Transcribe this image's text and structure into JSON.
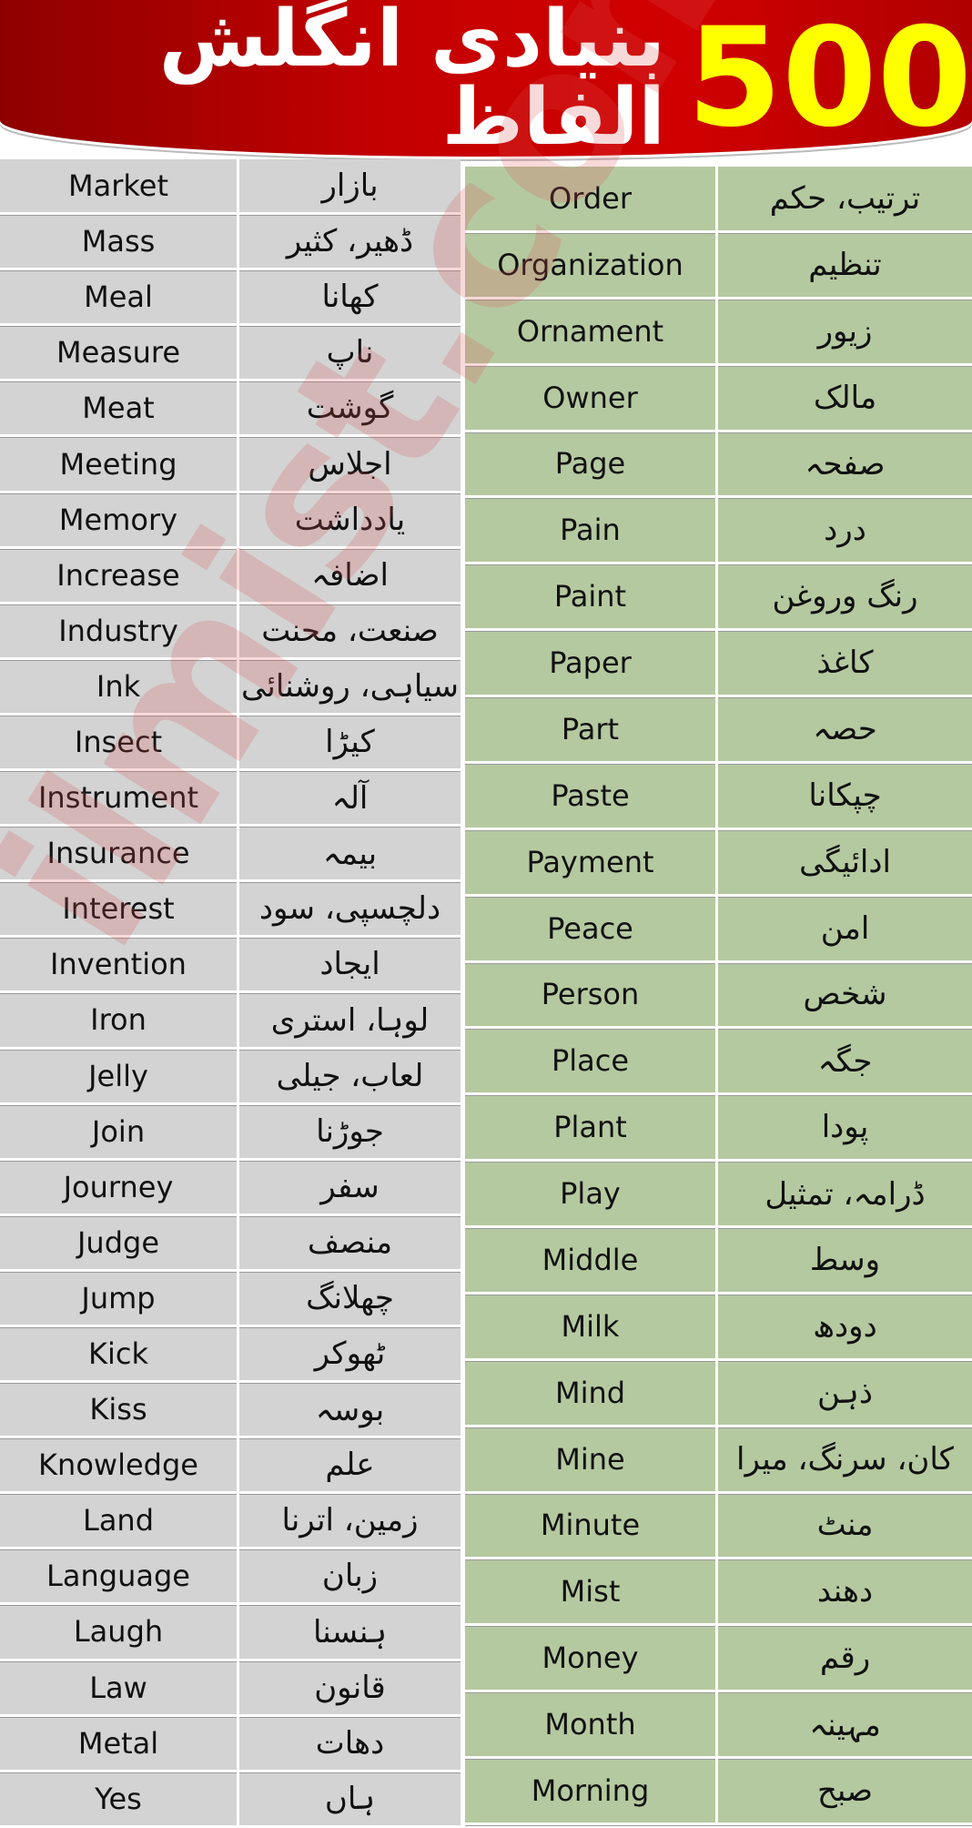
{
  "header": {
    "number": "500",
    "title": "بنیادی انگلش الفاظ"
  },
  "watermark": "ilmist.com",
  "left_table": {
    "rows": [
      [
        "Market",
        "بازار"
      ],
      [
        "Mass",
        "ڈھیر، کثیر"
      ],
      [
        "Meal",
        "کھانا"
      ],
      [
        "Measure",
        "ناپ"
      ],
      [
        "Meat",
        "گوشت"
      ],
      [
        "Meeting",
        "اجلاس"
      ],
      [
        "Memory",
        "یادداشت"
      ],
      [
        "Increase",
        "اضافہ"
      ],
      [
        "Industry",
        "صنعت، محنت"
      ],
      [
        "Ink",
        "سیاہی، روشنائی"
      ],
      [
        "Insect",
        "کیڑا"
      ],
      [
        "Instrument",
        "آلہ"
      ],
      [
        "Insurance",
        "بیمہ"
      ],
      [
        "Interest",
        "دلچسپی، سود"
      ],
      [
        "Invention",
        "ایجاد"
      ],
      [
        "Iron",
        "لوہا، استری"
      ],
      [
        "Jelly",
        "لعاب، جیلی"
      ],
      [
        "Join",
        "جوڑنا"
      ],
      [
        "Journey",
        "سفر"
      ],
      [
        "Judge",
        "منصف"
      ],
      [
        "Jump",
        "چھلانگ"
      ],
      [
        "Kick",
        "ٹھوکر"
      ],
      [
        "Kiss",
        "بوسہ"
      ],
      [
        "Knowledge",
        "علم"
      ],
      [
        "Land",
        "زمین، اترنا"
      ],
      [
        "Language",
        "زبان"
      ],
      [
        "Laugh",
        "ہنسنا"
      ],
      [
        "Law",
        "قانون"
      ],
      [
        "Metal",
        "دھات"
      ],
      [
        "Yes",
        "ہاں"
      ]
    ]
  },
  "right_table": {
    "rows": [
      [
        "Order",
        "ترتیب، حکم"
      ],
      [
        "Organization",
        "تنظیم"
      ],
      [
        "Ornament",
        "زیور"
      ],
      [
        "Owner",
        "مالک"
      ],
      [
        "Page",
        "صفحہ"
      ],
      [
        "Pain",
        "درد"
      ],
      [
        "Paint",
        "رنگ وروغن"
      ],
      [
        "Paper",
        "کاغذ"
      ],
      [
        "Part",
        "حصہ"
      ],
      [
        "Paste",
        "چپکانا"
      ],
      [
        "Payment",
        "ادائیگی"
      ],
      [
        "Peace",
        "امن"
      ],
      [
        "Person",
        "شخص"
      ],
      [
        "Place",
        "جگہ"
      ],
      [
        "Plant",
        "پودا"
      ],
      [
        "Play",
        "ڈرامہ، تمثیل"
      ],
      [
        "Middle",
        "وسط"
      ],
      [
        "Milk",
        "دودھ"
      ],
      [
        "Mind",
        "ذہن"
      ],
      [
        "Mine",
        "کان، سرنگ، میرا"
      ],
      [
        "Minute",
        "منٹ"
      ],
      [
        "Mist",
        "دھند"
      ],
      [
        "Money",
        "رقم"
      ],
      [
        "Month",
        "مہینہ"
      ],
      [
        "Morning",
        "صبح"
      ]
    ]
  }
}
